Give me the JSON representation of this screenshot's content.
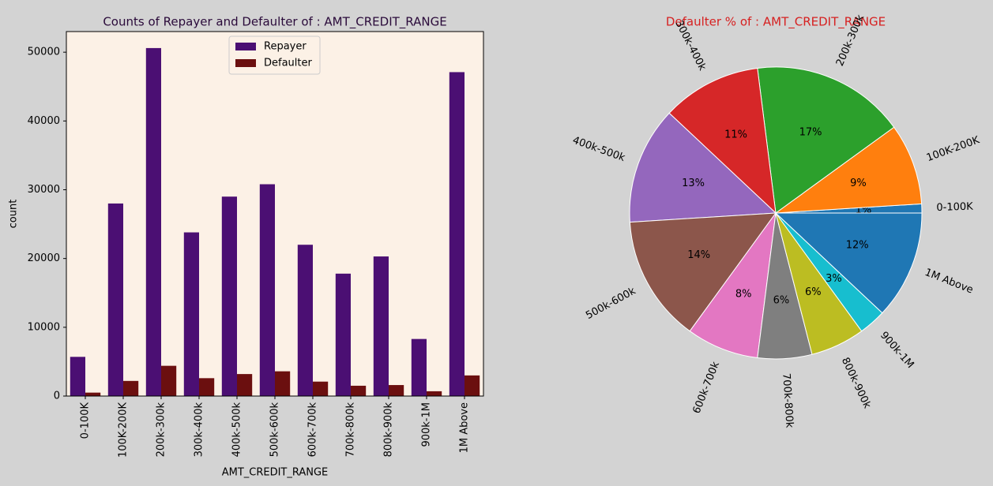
{
  "chart_data": [
    {
      "type": "bar",
      "title": "Counts of Repayer and Defaulter of : AMT_CREDIT_RANGE",
      "xlabel": "AMT_CREDIT_RANGE",
      "ylabel": "count",
      "categories": [
        "0-100K",
        "100K-200K",
        "200k-300k",
        "300k-400k",
        "400k-500k",
        "500k-600k",
        "600k-700k",
        "700k-800k",
        "800k-900k",
        "900k-1M",
        "1M Above"
      ],
      "series": [
        {
          "name": "Repayer",
          "color": "#4b0f73",
          "values": [
            5700,
            28000,
            50600,
            23800,
            29000,
            30800,
            22000,
            17800,
            20300,
            8300,
            47100
          ]
        },
        {
          "name": "Defaulter",
          "color": "#6b0f0f",
          "values": [
            500,
            2200,
            4400,
            2600,
            3200,
            3600,
            2100,
            1500,
            1600,
            700,
            3000
          ]
        }
      ],
      "ylim": [
        0,
        53000
      ],
      "yticks": [
        0,
        10000,
        20000,
        30000,
        40000,
        50000
      ],
      "legend": "upper center"
    },
    {
      "type": "pie",
      "title": "Defaulter % of : AMT_CREDIT_RANGE",
      "title_color": "#d62020",
      "categories": [
        "0-100K",
        "100K-200K",
        "200k-300k",
        "300k-400k",
        "400k-500k",
        "500k-600k",
        "600k-700k",
        "700k-800k",
        "800k-900k",
        "900k-1M",
        "1M Above"
      ],
      "values": [
        1,
        9,
        17,
        11,
        13,
        14,
        8,
        6,
        6,
        3,
        12
      ],
      "value_labels": [
        "1%",
        "9%",
        "17%",
        "11%",
        "13%",
        "14%",
        "8%",
        "6%",
        "6%",
        "3%",
        "12%"
      ],
      "colors": [
        "#1f77b4",
        "#ff7f0e",
        "#2ca02c",
        "#d62728",
        "#9467bd",
        "#8c564b",
        "#e377c2",
        "#7f7f7f",
        "#bcbd22",
        "#17becf",
        "#1f77b4"
      ]
    }
  ]
}
